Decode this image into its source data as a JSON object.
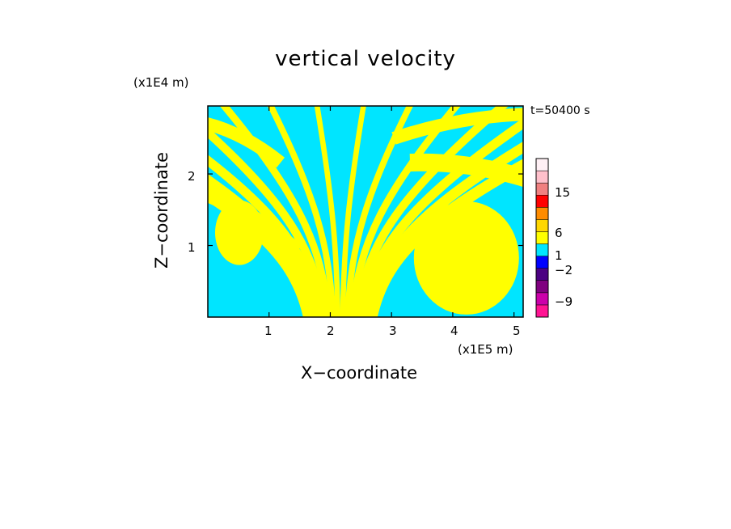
{
  "chart_data": {
    "type": "heatmap",
    "title": "vertical velocity",
    "xlabel": "X−coordinate",
    "ylabel": "Z−coordinate",
    "x_unit": "(x1E5 m)",
    "y_unit": "(x1E4 m)",
    "time_label": "t=50400 s",
    "xlim": [
      0,
      5.15
    ],
    "ylim": [
      0,
      2.95
    ],
    "x_ticks": [
      "1",
      "2",
      "3",
      "4",
      "5"
    ],
    "y_ticks": [
      "1",
      "2"
    ],
    "colorbar": {
      "labels": [
        "15",
        "6",
        "1",
        "−2",
        "−9"
      ],
      "colors": [
        "#ff1493",
        "#cc00aa",
        "#800080",
        "#4b0082",
        "#0000ff",
        "#00e5ff",
        "#ffff00",
        "#ffd700",
        "#ff8c00",
        "#ff0000",
        "#f08080",
        "#ffc0cb",
        "#fff0f5"
      ]
    },
    "field_colors": {
      "positive": "#ffff00",
      "negative": "#00e5ff"
    }
  }
}
